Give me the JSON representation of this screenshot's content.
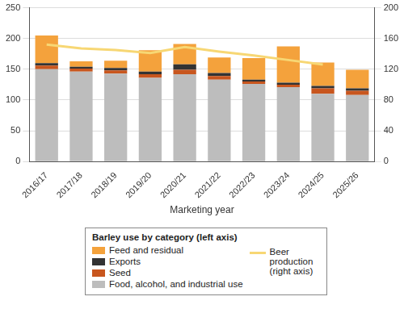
{
  "chart_data": {
    "type": "bar",
    "x_label": "Marketing year",
    "legend_title": "Barley use by category (left axis)",
    "categories": [
      "2016/17",
      "2017/18",
      "2018/19",
      "2019/20",
      "2020/21",
      "2021/22",
      "2022/23",
      "2023/24",
      "2024/25",
      "2025/26"
    ],
    "stacked": true,
    "grid": true,
    "ylim": [
      0,
      250
    ],
    "yticks": [
      0,
      50,
      100,
      150,
      200,
      250
    ],
    "y2lim": [
      0,
      200
    ],
    "y2ticks": [
      0,
      40,
      80,
      120,
      160,
      200
    ],
    "series": [
      {
        "name": "Food, alcohol, and industrial use",
        "color": "#bdbdbd",
        "type": "bar",
        "values": [
          150,
          146,
          143,
          136,
          142,
          133,
          126,
          121,
          110,
          108
        ]
      },
      {
        "name": "Seed",
        "color": "#c8561e",
        "type": "bar",
        "values": [
          6,
          5,
          5,
          6,
          7,
          6,
          4,
          4,
          9,
          7
        ]
      },
      {
        "name": "Exports",
        "color": "#333333",
        "type": "bar",
        "values": [
          4,
          3,
          4,
          4,
          9,
          5,
          3,
          3,
          4,
          4
        ]
      },
      {
        "name": "Feed and residual",
        "color": "#f4a23c",
        "type": "bar",
        "values": [
          45,
          9,
          12,
          35,
          33,
          25,
          35,
          59,
          38,
          30
        ]
      },
      {
        "name": "Beer production (right axis)",
        "color": "#f7d774",
        "type": "line",
        "axis": "y2",
        "marker": "none",
        "line_style": "solid",
        "values": [
          152,
          147,
          145,
          141,
          149,
          143,
          138,
          132,
          126,
          null
        ]
      }
    ]
  }
}
